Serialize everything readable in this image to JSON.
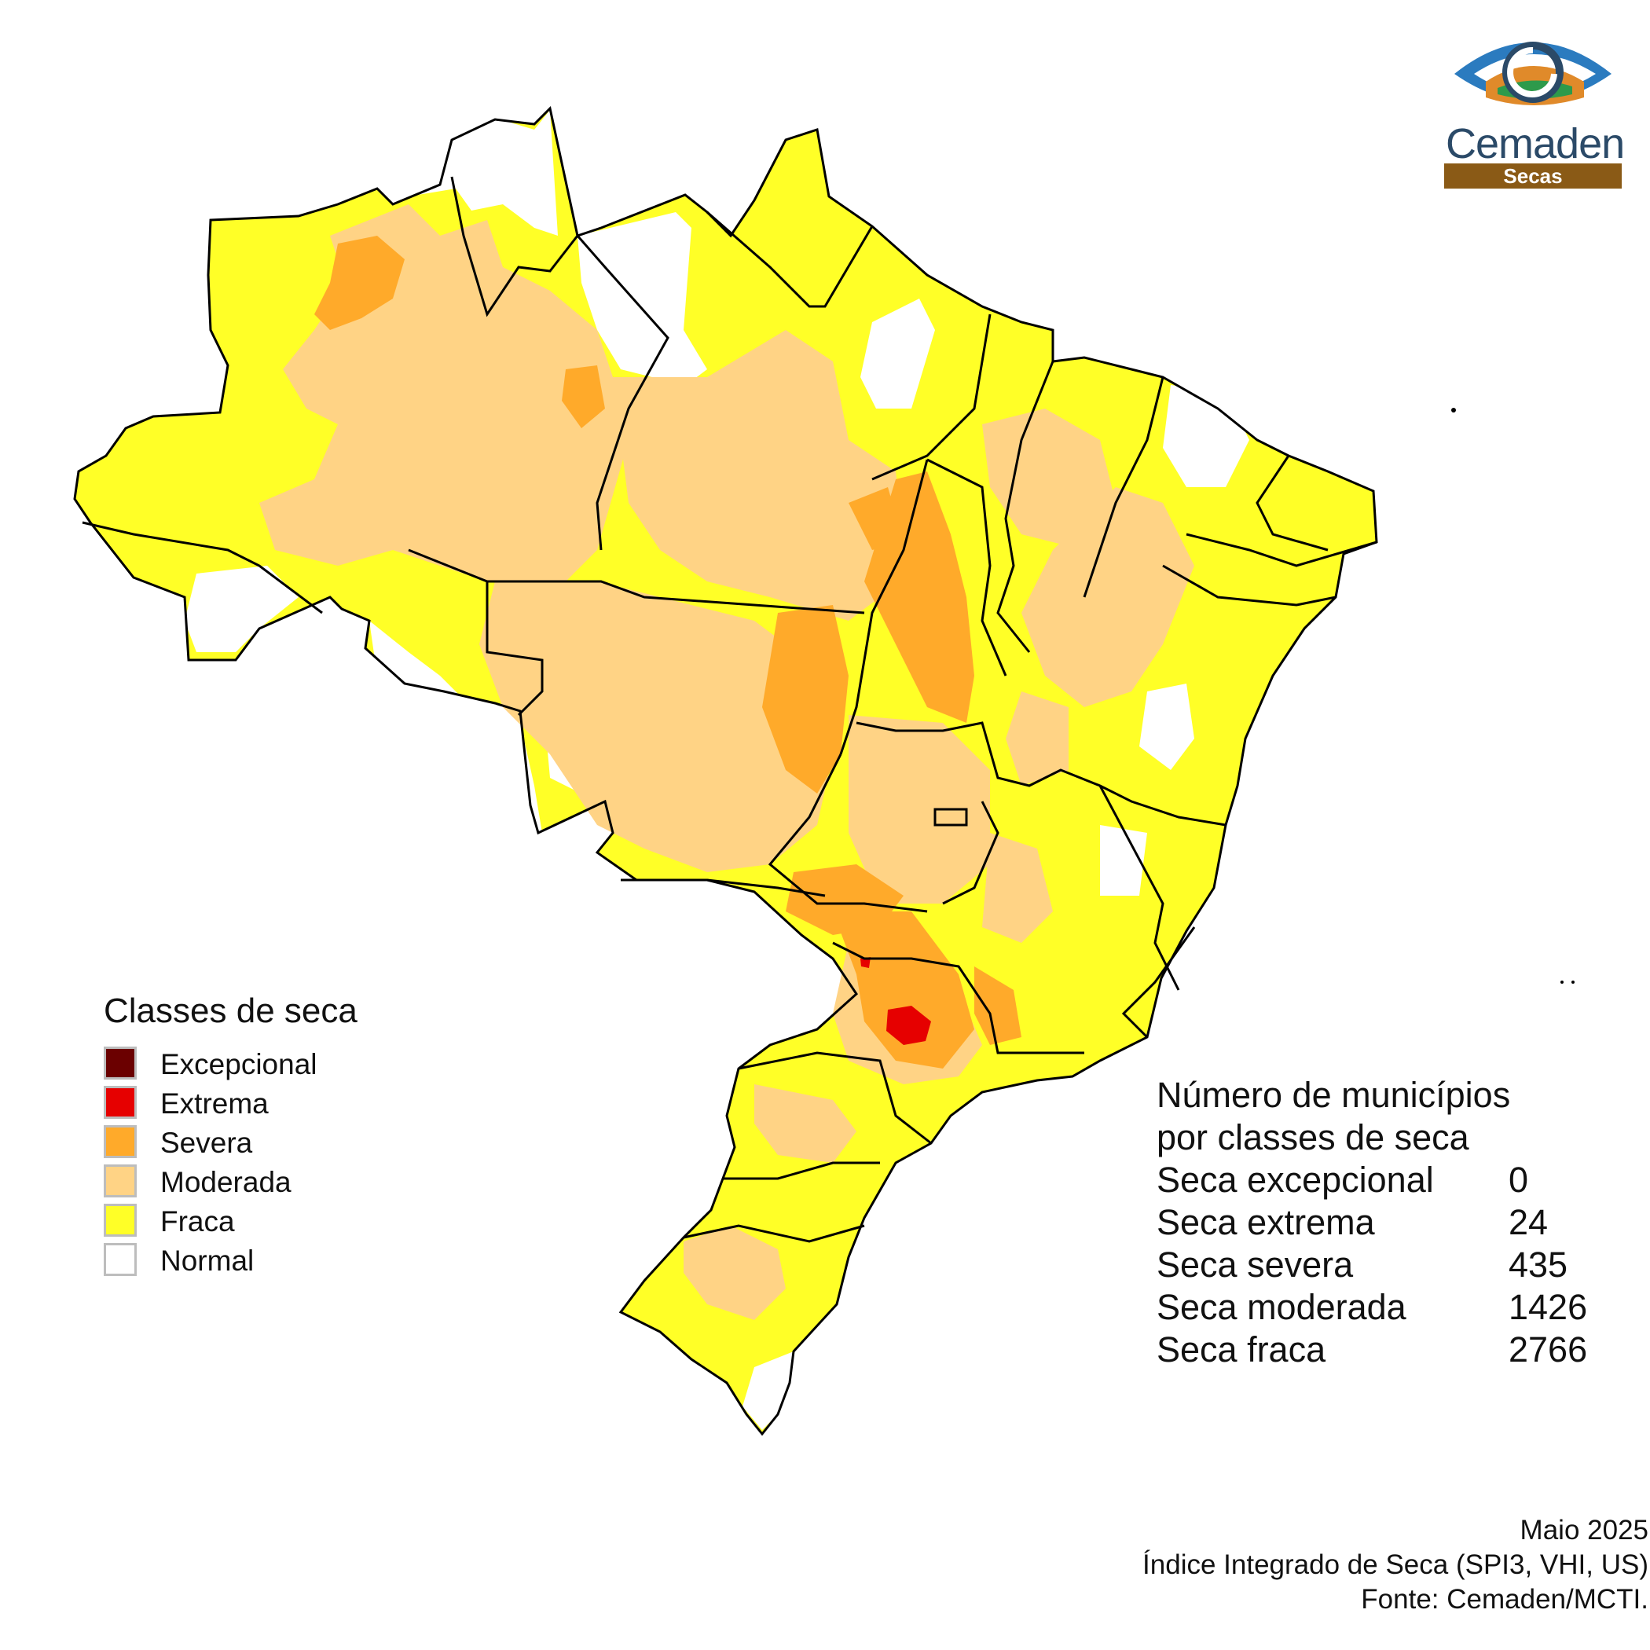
{
  "legend": {
    "title": "Classes de seca",
    "items": [
      {
        "label": "Excepcional",
        "color": "#6b0000"
      },
      {
        "label": "Extrema",
        "color": "#e60000"
      },
      {
        "label": "Severa",
        "color": "#ffaa2a"
      },
      {
        "label": "Moderada",
        "color": "#ffd385"
      },
      {
        "label": "Fraca",
        "color": "#ffff27"
      },
      {
        "label": "Normal",
        "color": "#ffffff"
      }
    ]
  },
  "counts": {
    "title_line1": "Número de municípios",
    "title_line2": "por classes de seca",
    "rows": [
      {
        "label": "Seca excepcional",
        "value": "0"
      },
      {
        "label": "Seca extrema",
        "value": "24"
      },
      {
        "label": "Seca severa",
        "value": "435"
      },
      {
        "label": "Seca moderada",
        "value": "1426"
      },
      {
        "label": "Seca fraca",
        "value": "2766"
      }
    ]
  },
  "footer": {
    "date": "Maio 2025",
    "index": "Índice Integrado de Seca (SPI3, VHI, US)",
    "source": "Fonte: Cemaden/MCTI."
  },
  "logo": {
    "name": "Cemaden",
    "subtitle": "Secas",
    "icon": "cemaden-eye-logo"
  }
}
